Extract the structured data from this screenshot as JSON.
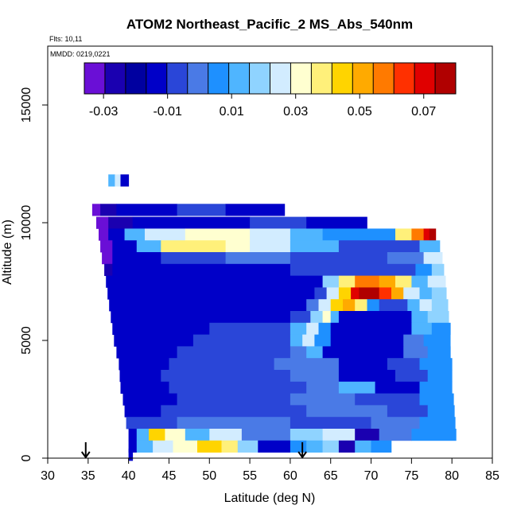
{
  "chart_data": {
    "type": "heatmap",
    "title": "ATOM2 Northeast_Pacific_2 MS_Abs_540nm",
    "flights_note": "Flts: 10,11",
    "date_note": "MMDD: 0219,0221",
    "xlabel": "Latitude (deg N)",
    "ylabel": "Altitude (m)",
    "xlim": [
      30,
      85
    ],
    "ylim": [
      0,
      17500
    ],
    "x_ticks": [
      "30",
      "35",
      "40",
      "45",
      "50",
      "55",
      "60",
      "65",
      "70",
      "75",
      "80",
      "85"
    ],
    "y_ticks": [
      "0",
      "5000",
      "10000",
      "15000"
    ],
    "colorbar": {
      "range": [
        -0.036,
        0.08
      ],
      "tick_labels": [
        "-0.03",
        "-0.01",
        "0.01",
        "0.03",
        "0.05",
        "0.07"
      ],
      "tick_values": [
        -0.03,
        -0.01,
        0.01,
        0.03,
        0.05,
        0.07
      ],
      "colors": [
        "#6a0fd6",
        "#1a00b0",
        "#0000a0",
        "#0000c8",
        "#2a46d8",
        "#4a7ae6",
        "#1e90ff",
        "#4fb5ff",
        "#8fd3ff",
        "#d2ecff",
        "#ffffd0",
        "#fff07a",
        "#ffd400",
        "#ffaa00",
        "#ff7a00",
        "#ff3000",
        "#e00000",
        "#b00000"
      ]
    },
    "arrows_latitude": [
      34.7,
      61.5
    ],
    "rows": [
      {
        "alt": 11800,
        "x0": 37.5,
        "x1": 40.0,
        "segs": [
          [
            37.5,
            38.3,
            "#4fb5ff"
          ],
          [
            38.3,
            39.0,
            "#d2ecff"
          ],
          [
            39.0,
            40.0,
            "#0000c8"
          ]
        ]
      },
      {
        "alt": 10550,
        "x0": 35.5,
        "x1": 59.3,
        "segs": [
          [
            35.5,
            36.5,
            "#6a0fd6"
          ],
          [
            36.5,
            38.5,
            "#1a00b0"
          ],
          [
            38.5,
            46.0,
            "#0000c8"
          ],
          [
            46.0,
            52.0,
            "#2a46d8"
          ],
          [
            52.0,
            59.3,
            "#0000c8"
          ]
        ]
      },
      {
        "alt": 10000,
        "x0": 36.0,
        "x1": 69.5,
        "segs": [
          [
            36.0,
            37.5,
            "#6a0fd6"
          ],
          [
            37.5,
            40.5,
            "#1a00b0"
          ],
          [
            40.5,
            55.0,
            "#0000c8"
          ],
          [
            55.0,
            62.0,
            "#2a46d8"
          ],
          [
            62.0,
            69.5,
            "#0000c8"
          ]
        ]
      },
      {
        "alt": 9500,
        "x0": 36.3,
        "x1": 78.0,
        "segs": [
          [
            36.3,
            37.5,
            "#6a0fd6"
          ],
          [
            37.5,
            39.5,
            "#0000c8"
          ],
          [
            39.5,
            42.0,
            "#4fb5ff"
          ],
          [
            42.0,
            47.0,
            "#d2ecff"
          ],
          [
            47.0,
            55.0,
            "#ffffd0"
          ],
          [
            55.0,
            60.0,
            "#d2ecff"
          ],
          [
            60.0,
            64.0,
            "#4fb5ff"
          ],
          [
            64.0,
            73.0,
            "#1e90ff"
          ],
          [
            73.0,
            75.0,
            "#fff07a"
          ],
          [
            75.0,
            76.5,
            "#ff7a00"
          ],
          [
            76.5,
            77.2,
            "#e00000"
          ],
          [
            77.2,
            78.0,
            "#b00000"
          ]
        ]
      },
      {
        "alt": 9000,
        "x0": 36.5,
        "x1": 78.5,
        "segs": [
          [
            36.5,
            38.0,
            "#6a0fd6"
          ],
          [
            38.0,
            41.0,
            "#0000c8"
          ],
          [
            41.0,
            44.0,
            "#4fb5ff"
          ],
          [
            44.0,
            52.0,
            "#fff07a"
          ],
          [
            52.0,
            55.0,
            "#ffffd0"
          ],
          [
            55.0,
            60.0,
            "#d2ecff"
          ],
          [
            60.0,
            66.0,
            "#4fb5ff"
          ],
          [
            66.0,
            76.0,
            "#2a46d8"
          ],
          [
            76.0,
            78.5,
            "#4fb5ff"
          ]
        ]
      },
      {
        "alt": 8500,
        "x0": 36.7,
        "x1": 78.8,
        "segs": [
          [
            36.7,
            38.0,
            "#6a0fd6"
          ],
          [
            38.0,
            44.0,
            "#0000c8"
          ],
          [
            44.0,
            52.0,
            "#2a46d8"
          ],
          [
            52.0,
            60.0,
            "#4a7ae6"
          ],
          [
            60.0,
            72.0,
            "#2a46d8"
          ],
          [
            72.0,
            76.5,
            "#4a7ae6"
          ],
          [
            76.5,
            78.8,
            "#d2ecff"
          ]
        ]
      },
      {
        "alt": 8000,
        "x0": 37.0,
        "x1": 79.0,
        "segs": [
          [
            37.0,
            38.0,
            "#1a00b0"
          ],
          [
            38.0,
            60.0,
            "#0000c8"
          ],
          [
            60.0,
            75.5,
            "#2a46d8"
          ],
          [
            75.5,
            77.5,
            "#1e90ff"
          ],
          [
            77.5,
            79.0,
            "#8fd3ff"
          ]
        ]
      },
      {
        "alt": 7500,
        "x0": 37.2,
        "x1": 79.2,
        "segs": [
          [
            37.2,
            64.0,
            "#0000c8"
          ],
          [
            64.0,
            66.0,
            "#8fd3ff"
          ],
          [
            66.0,
            68.0,
            "#fff07a"
          ],
          [
            68.0,
            71.0,
            "#ff7a00"
          ],
          [
            71.0,
            73.0,
            "#ffaa00"
          ],
          [
            73.0,
            75.0,
            "#fff07a"
          ],
          [
            75.0,
            77.0,
            "#4fb5ff"
          ],
          [
            77.0,
            79.2,
            "#d2ecff"
          ]
        ]
      },
      {
        "alt": 7000,
        "x0": 37.4,
        "x1": 79.3,
        "segs": [
          [
            37.4,
            63.0,
            "#0000c8"
          ],
          [
            63.0,
            64.5,
            "#2a46d8"
          ],
          [
            64.5,
            66.0,
            "#d2ecff"
          ],
          [
            66.0,
            67.5,
            "#ffd400"
          ],
          [
            67.5,
            68.5,
            "#e00000"
          ],
          [
            68.5,
            71.0,
            "#b00000"
          ],
          [
            71.0,
            72.5,
            "#ff3000"
          ],
          [
            72.5,
            74.0,
            "#ffaa00"
          ],
          [
            74.0,
            76.0,
            "#d2ecff"
          ],
          [
            76.0,
            77.5,
            "#4fb5ff"
          ],
          [
            77.5,
            79.3,
            "#8fd3ff"
          ]
        ]
      },
      {
        "alt": 6500,
        "x0": 37.6,
        "x1": 79.5,
        "segs": [
          [
            37.6,
            62.0,
            "#0000c8"
          ],
          [
            62.0,
            63.5,
            "#4a7ae6"
          ],
          [
            63.5,
            65.0,
            "#d2ecff"
          ],
          [
            65.0,
            66.5,
            "#ffd400"
          ],
          [
            66.5,
            68.0,
            "#ffaa00"
          ],
          [
            68.0,
            69.5,
            "#fff07a"
          ],
          [
            69.5,
            71.0,
            "#1e90ff"
          ],
          [
            71.0,
            74.5,
            "#2a46d8"
          ],
          [
            74.5,
            76.0,
            "#4fb5ff"
          ],
          [
            76.0,
            77.5,
            "#d2ecff"
          ],
          [
            77.5,
            79.5,
            "#8fd3ff"
          ]
        ]
      },
      {
        "alt": 6000,
        "x0": 37.8,
        "x1": 79.6,
        "segs": [
          [
            37.8,
            60.0,
            "#0000c8"
          ],
          [
            60.0,
            62.5,
            "#2a46d8"
          ],
          [
            62.5,
            64.0,
            "#8fd3ff"
          ],
          [
            64.0,
            65.0,
            "#ffffd0"
          ],
          [
            65.0,
            66.0,
            "#4fb5ff"
          ],
          [
            66.0,
            75.0,
            "#0000c8"
          ],
          [
            75.0,
            77.0,
            "#4fb5ff"
          ],
          [
            77.0,
            79.6,
            "#8fd3ff"
          ]
        ]
      },
      {
        "alt": 5500,
        "x0": 38.0,
        "x1": 79.8,
        "segs": [
          [
            38.0,
            50.0,
            "#0000c8"
          ],
          [
            50.0,
            60.0,
            "#2a46d8"
          ],
          [
            60.0,
            62.0,
            "#4fb5ff"
          ],
          [
            62.0,
            63.5,
            "#d2ecff"
          ],
          [
            63.5,
            65.0,
            "#1e90ff"
          ],
          [
            65.0,
            75.0,
            "#0000c8"
          ],
          [
            75.0,
            77.5,
            "#4fb5ff"
          ],
          [
            77.5,
            79.8,
            "#1e90ff"
          ]
        ]
      },
      {
        "alt": 5000,
        "x0": 38.2,
        "x1": 79.8,
        "segs": [
          [
            38.2,
            48.0,
            "#0000c8"
          ],
          [
            48.0,
            60.0,
            "#2a46d8"
          ],
          [
            60.0,
            61.5,
            "#4fb5ff"
          ],
          [
            61.5,
            63.0,
            "#d2ecff"
          ],
          [
            63.0,
            65.0,
            "#1e90ff"
          ],
          [
            65.0,
            74.0,
            "#0000c8"
          ],
          [
            74.0,
            76.5,
            "#4a7ae6"
          ],
          [
            76.5,
            79.8,
            "#1e90ff"
          ]
        ]
      },
      {
        "alt": 4500,
        "x0": 38.5,
        "x1": 79.8,
        "segs": [
          [
            38.5,
            46.0,
            "#0000c8"
          ],
          [
            46.0,
            60.0,
            "#2a46d8"
          ],
          [
            60.0,
            62.0,
            "#4a7ae6"
          ],
          [
            62.0,
            64.0,
            "#4fb5ff"
          ],
          [
            64.0,
            74.0,
            "#0000c8"
          ],
          [
            74.0,
            77.0,
            "#4a7ae6"
          ],
          [
            77.0,
            79.8,
            "#1e90ff"
          ]
        ]
      },
      {
        "alt": 4000,
        "x0": 38.8,
        "x1": 80.0,
        "segs": [
          [
            38.8,
            45.0,
            "#0000c8"
          ],
          [
            45.0,
            58.0,
            "#2a46d8"
          ],
          [
            58.0,
            66.0,
            "#4a7ae6"
          ],
          [
            66.0,
            72.0,
            "#0000c8"
          ],
          [
            72.0,
            76.0,
            "#2a46d8"
          ],
          [
            76.0,
            80.0,
            "#1e90ff"
          ]
        ]
      },
      {
        "alt": 3500,
        "x0": 38.9,
        "x1": 80.0,
        "segs": [
          [
            38.9,
            44.0,
            "#0000c8"
          ],
          [
            44.0,
            60.0,
            "#2a46d8"
          ],
          [
            60.0,
            66.0,
            "#4a7ae6"
          ],
          [
            66.0,
            73.0,
            "#0000c8"
          ],
          [
            73.0,
            77.0,
            "#2a46d8"
          ],
          [
            77.0,
            80.0,
            "#1e90ff"
          ]
        ]
      },
      {
        "alt": 3000,
        "x0": 39.0,
        "x1": 80.0,
        "segs": [
          [
            39.0,
            45.0,
            "#0000c8"
          ],
          [
            45.0,
            62.0,
            "#2a46d8"
          ],
          [
            62.0,
            66.0,
            "#4a7ae6"
          ],
          [
            66.0,
            70.5,
            "#4fb5ff"
          ],
          [
            70.5,
            76.0,
            "#0000c8"
          ],
          [
            76.0,
            80.0,
            "#1e90ff"
          ]
        ]
      },
      {
        "alt": 2500,
        "x0": 39.3,
        "x1": 80.2,
        "segs": [
          [
            39.3,
            46.0,
            "#0000c8"
          ],
          [
            46.0,
            60.0,
            "#2a46d8"
          ],
          [
            60.0,
            68.0,
            "#4a7ae6"
          ],
          [
            68.0,
            76.0,
            "#2a46d8"
          ],
          [
            76.0,
            80.2,
            "#1e90ff"
          ]
        ]
      },
      {
        "alt": 2000,
        "x0": 39.5,
        "x1": 80.3,
        "segs": [
          [
            39.5,
            44.0,
            "#0000c8"
          ],
          [
            44.0,
            62.0,
            "#2a46d8"
          ],
          [
            62.0,
            72.0,
            "#4a7ae6"
          ],
          [
            72.0,
            77.0,
            "#2a46d8"
          ],
          [
            77.0,
            80.3,
            "#1e90ff"
          ]
        ]
      },
      {
        "alt": 1500,
        "x0": 39.7,
        "x1": 80.4,
        "segs": [
          [
            39.7,
            46.0,
            "#2a46d8"
          ],
          [
            46.0,
            60.0,
            "#4a7ae6"
          ],
          [
            60.0,
            70.0,
            "#2a46d8"
          ],
          [
            70.0,
            76.0,
            "#4a7ae6"
          ],
          [
            76.0,
            80.4,
            "#1e90ff"
          ]
        ]
      },
      {
        "alt": 1000,
        "x0": 40.0,
        "x1": 80.5,
        "segs": [
          [
            40.0,
            41.0,
            "#0000c8"
          ],
          [
            41.0,
            42.5,
            "#4fb5ff"
          ],
          [
            42.5,
            44.5,
            "#ffd400"
          ],
          [
            44.5,
            47.0,
            "#ffffd0"
          ],
          [
            47.0,
            50.0,
            "#4fb5ff"
          ],
          [
            50.0,
            54.0,
            "#d2ecff"
          ],
          [
            54.0,
            60.0,
            "#4a7ae6"
          ],
          [
            60.0,
            64.0,
            "#8fd3ff"
          ],
          [
            64.0,
            68.0,
            "#d2ecff"
          ],
          [
            68.0,
            71.0,
            "#1a00b0"
          ],
          [
            71.0,
            75.0,
            "#4a7ae6"
          ],
          [
            75.0,
            80.5,
            "#1e90ff"
          ]
        ]
      },
      {
        "alt": 500,
        "x0": 40.0,
        "x1": 72.5,
        "segs": [
          [
            40.0,
            41.0,
            "#0000c8"
          ],
          [
            41.0,
            43.0,
            "#4fb5ff"
          ],
          [
            43.0,
            45.5,
            "#d2ecff"
          ],
          [
            45.5,
            48.5,
            "#ffffd0"
          ],
          [
            48.5,
            51.5,
            "#ffd400"
          ],
          [
            51.5,
            53.5,
            "#fff07a"
          ],
          [
            53.5,
            56.0,
            "#8fd3ff"
          ],
          [
            56.0,
            60.0,
            "#0000c8"
          ],
          [
            60.0,
            62.0,
            "#1e90ff"
          ],
          [
            62.0,
            64.0,
            "#4fb5ff"
          ],
          [
            64.0,
            66.0,
            "#8fd3ff"
          ],
          [
            66.0,
            68.0,
            "#1a00b0"
          ],
          [
            68.0,
            70.0,
            "#4fb5ff"
          ],
          [
            70.0,
            72.5,
            "#1e90ff"
          ]
        ]
      },
      {
        "alt": 150,
        "x0": 40.0,
        "x1": 40.5,
        "segs": [
          [
            40.0,
            40.5,
            "#0000c8"
          ]
        ]
      }
    ]
  }
}
